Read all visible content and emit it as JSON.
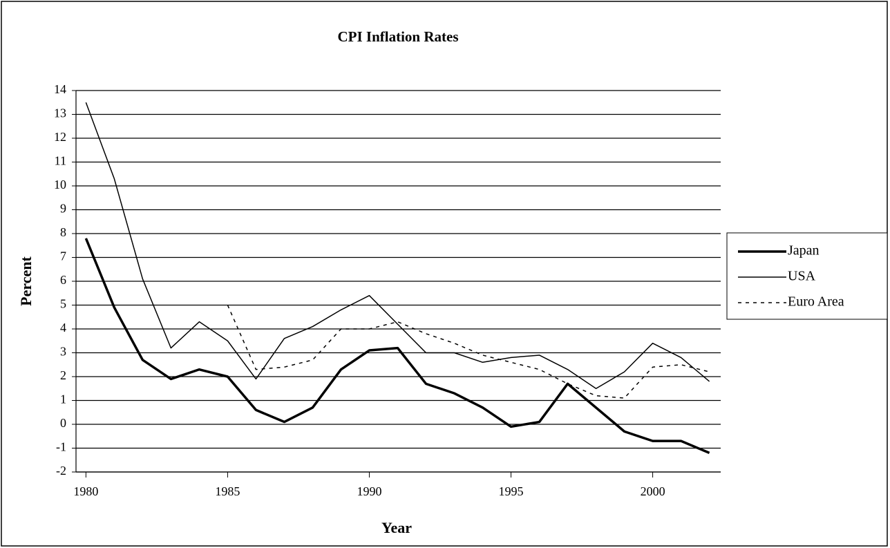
{
  "chart_data": {
    "type": "line",
    "title": "CPI Inflation Rates",
    "x_label": "Year",
    "y_label": "Percent",
    "x": [
      1980,
      1981,
      1982,
      1983,
      1984,
      1985,
      1986,
      1987,
      1988,
      1989,
      1990,
      1991,
      1992,
      1993,
      1994,
      1995,
      1996,
      1997,
      1998,
      1999,
      2000,
      2001,
      2002
    ],
    "series": [
      {
        "name": "Japan",
        "color": "#000000",
        "line_width": 3.5,
        "dash": "solid",
        "values": [
          7.8,
          4.9,
          2.7,
          1.9,
          2.3,
          2.0,
          0.6,
          0.1,
          0.7,
          2.3,
          3.1,
          3.2,
          1.7,
          1.3,
          0.7,
          -0.1,
          0.1,
          1.7,
          0.7,
          -0.3,
          -0.7,
          -0.7,
          -1.2
        ]
      },
      {
        "name": "USA",
        "color": "#000000",
        "line_width": 1.5,
        "dash": "solid",
        "values": [
          13.5,
          10.3,
          6.1,
          3.2,
          4.3,
          3.5,
          1.9,
          3.6,
          4.1,
          4.8,
          5.4,
          4.2,
          3.0,
          3.0,
          2.6,
          2.8,
          2.9,
          2.3,
          1.5,
          2.2,
          3.4,
          2.8,
          1.8
        ]
      },
      {
        "name": "Euro Area",
        "color": "#000000",
        "line_width": 1.5,
        "dash": "dotted",
        "values": [
          null,
          null,
          null,
          null,
          null,
          5.0,
          2.3,
          2.4,
          2.7,
          4.0,
          4.0,
          4.3,
          3.8,
          3.4,
          2.9,
          2.6,
          2.3,
          1.7,
          1.2,
          1.1,
          2.4,
          2.5,
          2.2
        ]
      }
    ],
    "xlim": [
      1979.65,
      2002.4
    ],
    "xticks": [
      1980,
      1985,
      1990,
      1995,
      2000
    ],
    "ylim": [
      -2,
      14
    ],
    "yticks": [
      -2,
      -1,
      0,
      1,
      2,
      3,
      4,
      5,
      6,
      7,
      8,
      9,
      10,
      11,
      12,
      13,
      14
    ],
    "grid": true,
    "legend": "right"
  }
}
